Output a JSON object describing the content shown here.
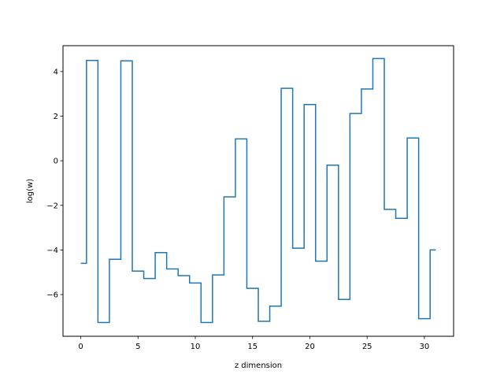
{
  "chart_data": {
    "type": "line",
    "drawstyle": "steps-mid",
    "title": "",
    "xlabel": "z dimension",
    "ylabel": "log(w)",
    "xlim": [
      -1.55,
      32.55
    ],
    "ylim": [
      -7.87,
      5.16
    ],
    "xticks": [
      0,
      5,
      10,
      15,
      20,
      25,
      30
    ],
    "yticks": [
      -6,
      -4,
      -2,
      0,
      2,
      4
    ],
    "grid": false,
    "color": "#1f77b4",
    "series": [
      {
        "x": [
          0,
          1,
          2,
          3,
          4,
          5,
          6,
          7,
          8,
          9,
          10,
          11,
          12,
          13,
          14,
          15,
          16,
          17,
          18,
          19,
          20,
          21,
          22,
          23,
          24,
          25,
          26,
          27,
          28,
          29,
          30,
          31
        ],
        "values": [
          -4.6,
          4.5,
          -7.25,
          -4.42,
          4.48,
          -4.95,
          -5.28,
          -4.12,
          -4.85,
          -5.15,
          -5.48,
          -7.25,
          -5.12,
          -1.62,
          0.98,
          -5.72,
          -7.2,
          -6.52,
          3.25,
          -3.92,
          2.52,
          -4.5,
          -0.2,
          -6.22,
          2.12,
          3.22,
          4.58,
          -2.18,
          -2.58,
          1.02,
          -7.08,
          -4.0
        ]
      }
    ]
  }
}
